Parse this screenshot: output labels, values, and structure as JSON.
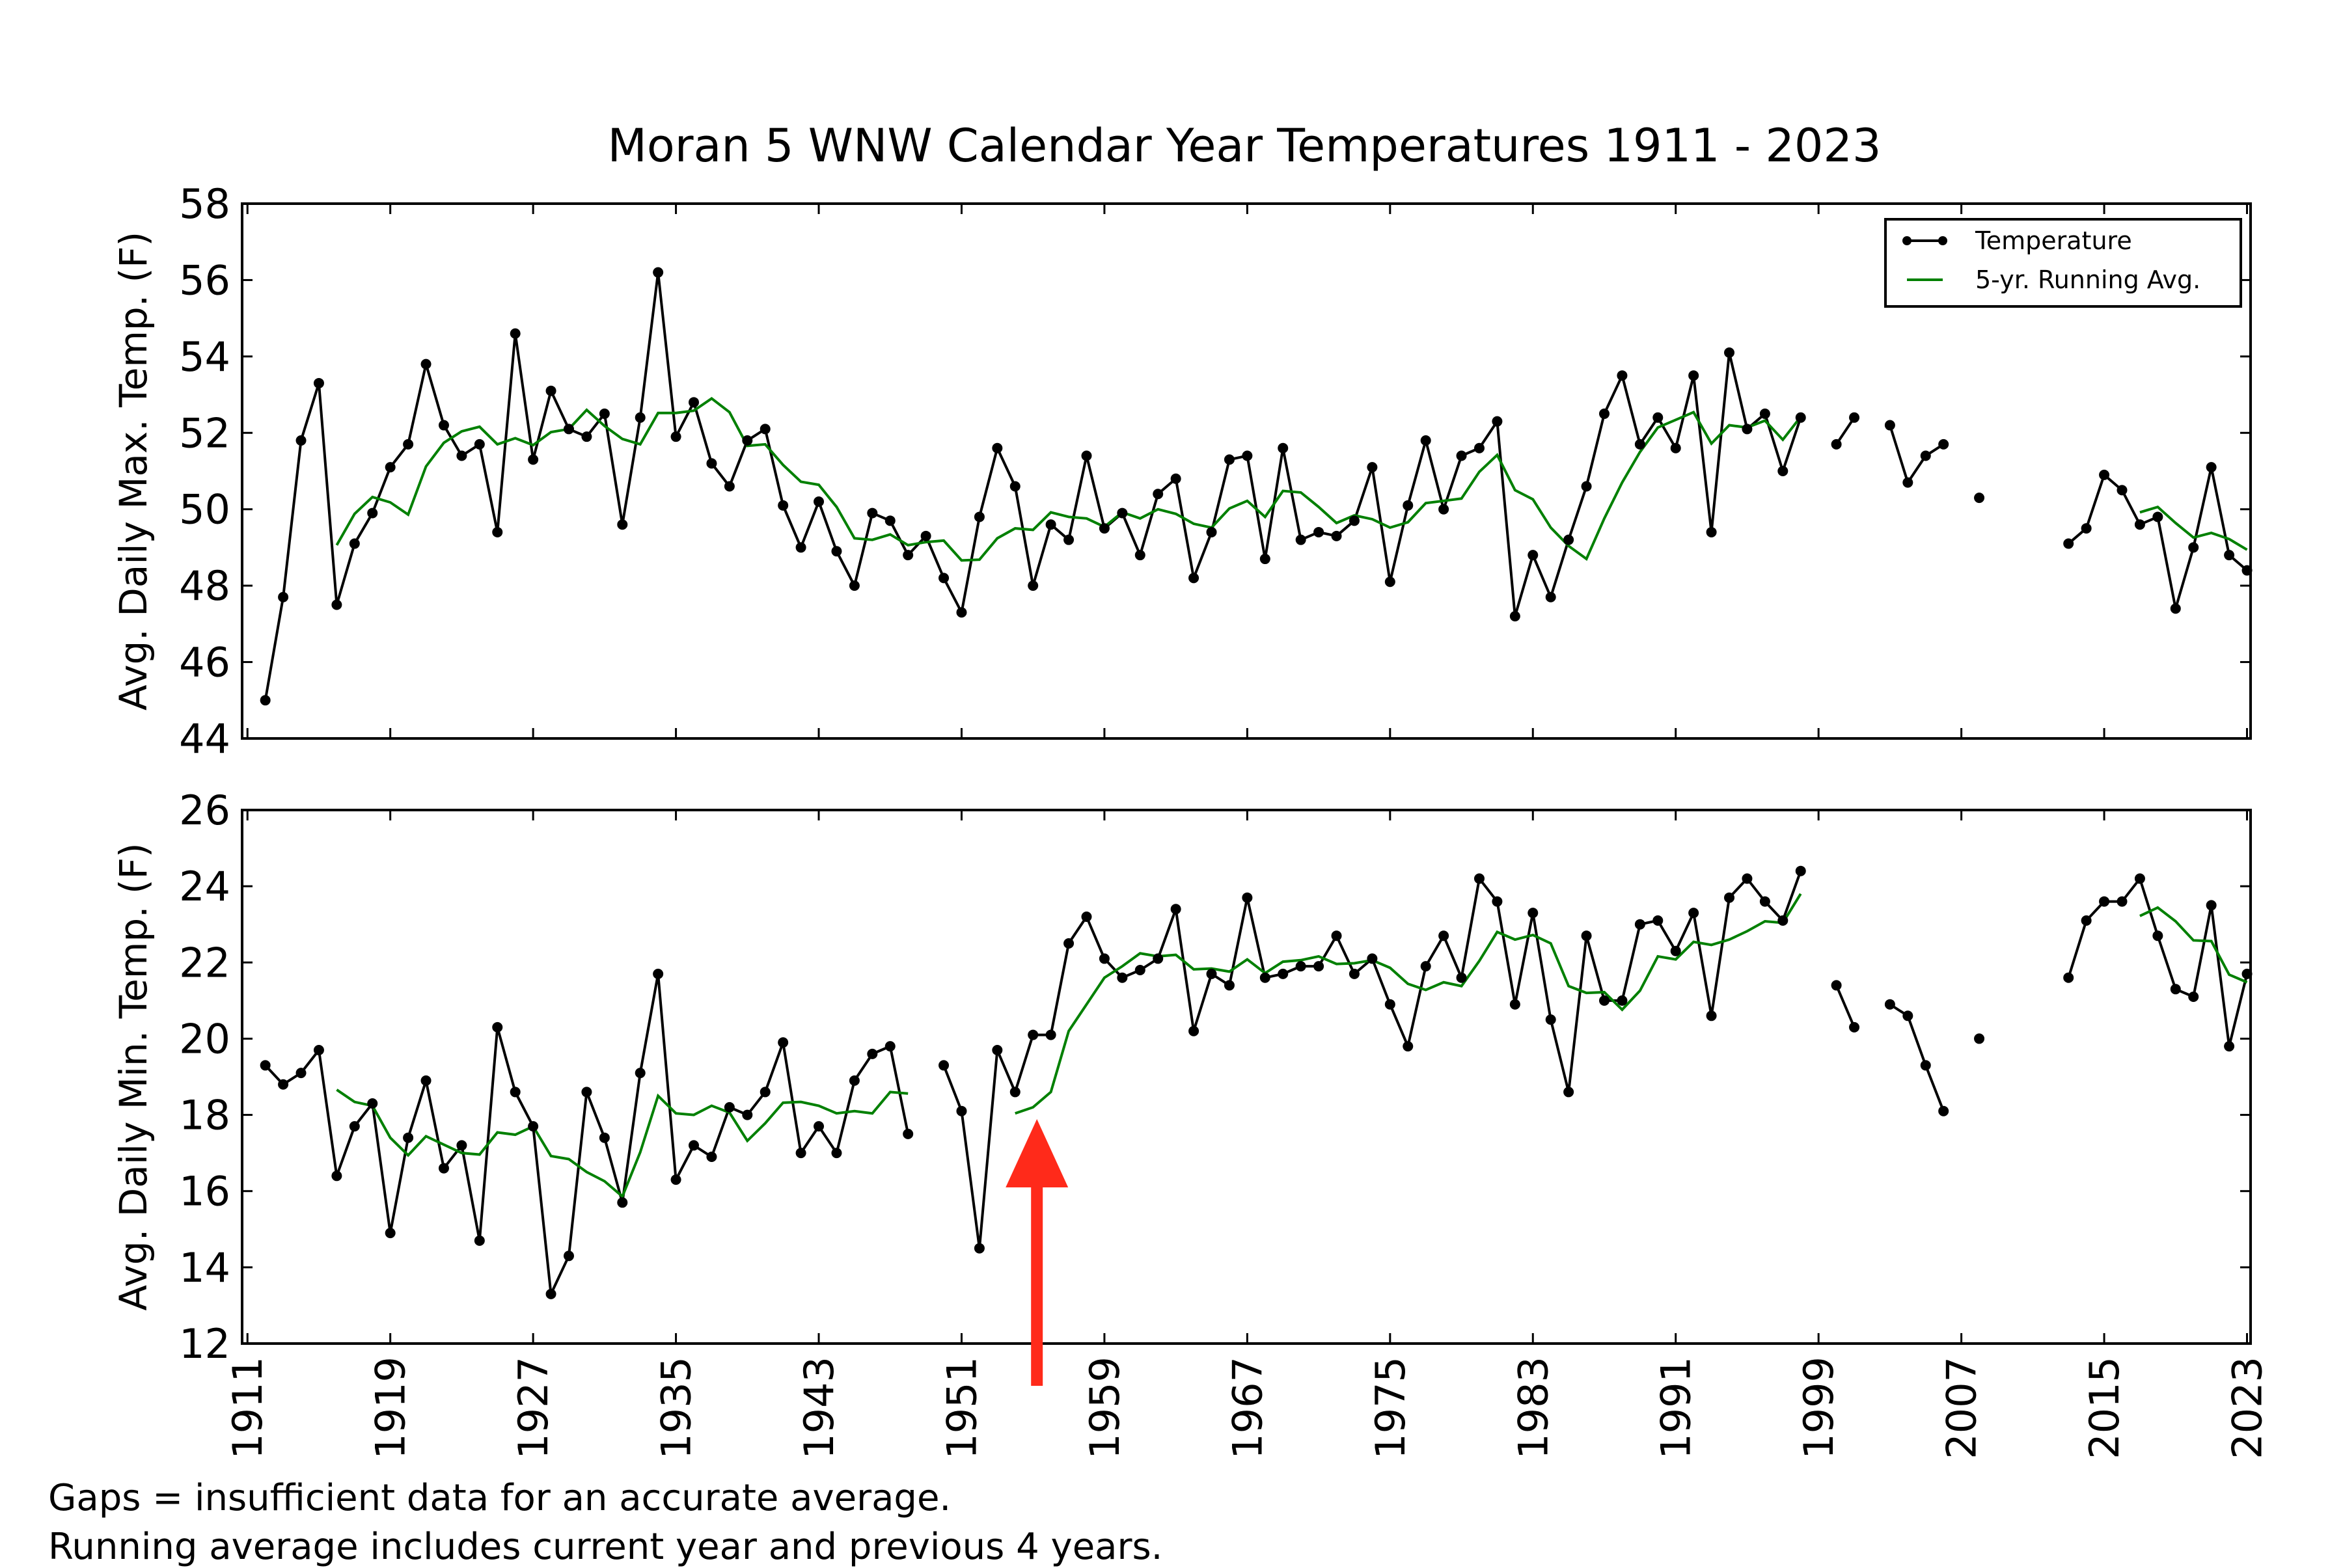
{
  "chart_data": [
    {
      "type": "line",
      "title": "Moran 5 WNW Calendar Year Temperatures 1911 - 2023",
      "ylabel": "Avg. Daily Max. Temp. (F)",
      "xlabel": "",
      "ylim": [
        44,
        58
      ],
      "xlim": [
        1911,
        2023
      ],
      "yticks": [
        44,
        46,
        48,
        50,
        52,
        54,
        56,
        58
      ],
      "legend": {
        "placement": "top-right",
        "entries": [
          "Temperature",
          "5-yr. Running Avg."
        ]
      },
      "series": [
        {
          "name": "Temperature",
          "color": "#000000",
          "points": [
            [
              1912,
              45.0
            ],
            [
              1913,
              47.7
            ],
            [
              1914,
              51.8
            ],
            [
              1915,
              53.3
            ],
            [
              1916,
              47.5
            ],
            [
              1917,
              49.1
            ],
            [
              1918,
              49.9
            ],
            [
              1919,
              51.1
            ],
            [
              1920,
              51.7
            ],
            [
              1921,
              53.8
            ],
            [
              1922,
              52.2
            ],
            [
              1923,
              51.4
            ],
            [
              1924,
              51.7
            ],
            [
              1925,
              49.4
            ],
            [
              1926,
              54.6
            ],
            [
              1927,
              51.3
            ],
            [
              1928,
              53.1
            ],
            [
              1929,
              52.1
            ],
            [
              1930,
              51.9
            ],
            [
              1931,
              52.5
            ],
            [
              1932,
              49.6
            ],
            [
              1933,
              52.4
            ],
            [
              1934,
              56.2
            ],
            [
              1935,
              51.9
            ],
            [
              1936,
              52.8
            ],
            [
              1937,
              51.2
            ],
            [
              1938,
              50.6
            ],
            [
              1939,
              51.8
            ],
            [
              1940,
              52.1
            ],
            [
              1941,
              50.1
            ],
            [
              1942,
              49.0
            ],
            [
              1943,
              50.2
            ],
            [
              1944,
              48.9
            ],
            [
              1945,
              48.0
            ],
            [
              1946,
              49.9
            ],
            [
              1947,
              49.7
            ],
            [
              1948,
              48.8
            ],
            [
              1949,
              49.3
            ],
            [
              1950,
              48.2
            ],
            [
              1951,
              47.3
            ],
            [
              1952,
              49.8
            ],
            [
              1953,
              51.6
            ],
            [
              1954,
              50.6
            ],
            [
              1955,
              48.0
            ],
            [
              1956,
              49.6
            ],
            [
              1957,
              49.2
            ],
            [
              1958,
              51.4
            ],
            [
              1959,
              49.5
            ],
            [
              1960,
              49.9
            ],
            [
              1961,
              48.8
            ],
            [
              1962,
              50.4
            ],
            [
              1963,
              50.8
            ],
            [
              1964,
              48.2
            ],
            [
              1965,
              49.4
            ],
            [
              1966,
              51.3
            ],
            [
              1967,
              51.4
            ],
            [
              1968,
              48.7
            ],
            [
              1969,
              51.6
            ],
            [
              1970,
              49.2
            ],
            [
              1971,
              49.4
            ],
            [
              1972,
              49.3
            ],
            [
              1973,
              49.7
            ],
            [
              1974,
              51.1
            ],
            [
              1975,
              48.1
            ],
            [
              1976,
              50.1
            ],
            [
              1977,
              51.8
            ],
            [
              1978,
              50.0
            ],
            [
              1979,
              51.4
            ],
            [
              1980,
              51.6
            ],
            [
              1981,
              52.3
            ],
            [
              1982,
              47.2
            ],
            [
              1983,
              48.8
            ],
            [
              1984,
              47.7
            ],
            [
              1985,
              49.2
            ],
            [
              1986,
              50.6
            ],
            [
              1987,
              52.5
            ],
            [
              1988,
              53.5
            ],
            [
              1989,
              51.7
            ],
            [
              1990,
              52.4
            ],
            [
              1991,
              51.6
            ],
            [
              1992,
              53.5
            ],
            [
              1993,
              49.4
            ],
            [
              1994,
              54.1
            ],
            [
              1995,
              52.1
            ],
            [
              1996,
              52.5
            ],
            [
              1997,
              51.0
            ],
            [
              1998,
              52.4
            ],
            [
              1999,
              null
            ],
            [
              2000,
              51.7
            ],
            [
              2001,
              52.4
            ],
            [
              2002,
              null
            ],
            [
              2003,
              52.2
            ],
            [
              2004,
              50.7
            ],
            [
              2005,
              51.4
            ],
            [
              2006,
              51.7
            ],
            [
              2007,
              null
            ],
            [
              2008,
              50.3
            ],
            [
              2009,
              null
            ],
            [
              2012,
              null
            ],
            [
              2013,
              49.1
            ],
            [
              2014,
              49.5
            ],
            [
              2015,
              50.9
            ],
            [
              2016,
              50.5
            ],
            [
              2017,
              49.6
            ],
            [
              2018,
              49.8
            ],
            [
              2019,
              47.4
            ],
            [
              2020,
              49.0
            ],
            [
              2021,
              51.1
            ],
            [
              2022,
              48.8
            ],
            [
              2023,
              48.4
            ]
          ]
        },
        {
          "name": "5-yr. Running Avg.",
          "color": "#008000",
          "window": 5
        }
      ]
    },
    {
      "type": "line",
      "ylabel": "Avg. Daily Min. Temp. (F)",
      "xlabel": "",
      "ylim": [
        12,
        26
      ],
      "xlim": [
        1911,
        2023
      ],
      "yticks": [
        12,
        14,
        16,
        18,
        20,
        22,
        24,
        26
      ],
      "xticks": [
        "1911",
        "1919",
        "1927",
        "1935",
        "1943",
        "1951",
        "1959",
        "1967",
        "1975",
        "1983",
        "1991",
        "1999",
        "2007",
        "2015",
        "2023"
      ],
      "series": [
        {
          "name": "Temperature",
          "color": "#000000",
          "points": [
            [
              1912,
              19.3
            ],
            [
              1913,
              18.8
            ],
            [
              1914,
              19.1
            ],
            [
              1915,
              19.7
            ],
            [
              1916,
              16.4
            ],
            [
              1917,
              17.7
            ],
            [
              1918,
              18.3
            ],
            [
              1919,
              14.9
            ],
            [
              1920,
              17.4
            ],
            [
              1921,
              18.9
            ],
            [
              1922,
              16.6
            ],
            [
              1923,
              17.2
            ],
            [
              1924,
              14.7
            ],
            [
              1925,
              20.3
            ],
            [
              1926,
              18.6
            ],
            [
              1927,
              17.7
            ],
            [
              1928,
              13.3
            ],
            [
              1929,
              14.3
            ],
            [
              1930,
              18.6
            ],
            [
              1931,
              17.4
            ],
            [
              1932,
              15.7
            ],
            [
              1933,
              19.1
            ],
            [
              1934,
              21.7
            ],
            [
              1935,
              16.3
            ],
            [
              1936,
              17.2
            ],
            [
              1937,
              16.9
            ],
            [
              1938,
              18.2
            ],
            [
              1939,
              18.0
            ],
            [
              1940,
              18.6
            ],
            [
              1941,
              19.9
            ],
            [
              1942,
              17.0
            ],
            [
              1943,
              17.7
            ],
            [
              1944,
              17.0
            ],
            [
              1945,
              18.9
            ],
            [
              1946,
              19.6
            ],
            [
              1947,
              19.8
            ],
            [
              1948,
              17.5
            ],
            [
              1949,
              null
            ],
            [
              1950,
              19.3
            ],
            [
              1951,
              18.1
            ],
            [
              1952,
              14.5
            ],
            [
              1953,
              19.7
            ],
            [
              1954,
              18.6
            ],
            [
              1955,
              20.1
            ],
            [
              1956,
              20.1
            ],
            [
              1957,
              22.5
            ],
            [
              1958,
              23.2
            ],
            [
              1959,
              22.1
            ],
            [
              1960,
              21.6
            ],
            [
              1961,
              21.8
            ],
            [
              1962,
              22.1
            ],
            [
              1963,
              23.4
            ],
            [
              1964,
              20.2
            ],
            [
              1965,
              21.7
            ],
            [
              1966,
              21.4
            ],
            [
              1967,
              23.7
            ],
            [
              1968,
              21.6
            ],
            [
              1969,
              21.7
            ],
            [
              1970,
              21.9
            ],
            [
              1971,
              21.9
            ],
            [
              1972,
              22.7
            ],
            [
              1973,
              21.7
            ],
            [
              1974,
              22.1
            ],
            [
              1975,
              20.9
            ],
            [
              1976,
              19.8
            ],
            [
              1977,
              21.9
            ],
            [
              1978,
              22.7
            ],
            [
              1979,
              21.6
            ],
            [
              1980,
              24.2
            ],
            [
              1981,
              23.6
            ],
            [
              1982,
              20.9
            ],
            [
              1983,
              23.3
            ],
            [
              1984,
              20.5
            ],
            [
              1985,
              18.6
            ],
            [
              1986,
              22.7
            ],
            [
              1987,
              21.0
            ],
            [
              1988,
              21.0
            ],
            [
              1989,
              23.0
            ],
            [
              1990,
              23.1
            ],
            [
              1991,
              22.3
            ],
            [
              1992,
              23.3
            ],
            [
              1993,
              20.6
            ],
            [
              1994,
              23.7
            ],
            [
              1995,
              24.2
            ],
            [
              1996,
              23.6
            ],
            [
              1997,
              23.1
            ],
            [
              1998,
              24.4
            ],
            [
              1999,
              null
            ],
            [
              2000,
              21.4
            ],
            [
              2001,
              20.3
            ],
            [
              2002,
              null
            ],
            [
              2003,
              20.9
            ],
            [
              2004,
              20.6
            ],
            [
              2005,
              19.3
            ],
            [
              2006,
              18.1
            ],
            [
              2007,
              null
            ],
            [
              2008,
              20.0
            ],
            [
              2009,
              null
            ],
            [
              2012,
              null
            ],
            [
              2013,
              21.6
            ],
            [
              2014,
              23.1
            ],
            [
              2015,
              23.6
            ],
            [
              2016,
              23.6
            ],
            [
              2017,
              24.2
            ],
            [
              2018,
              22.7
            ],
            [
              2019,
              21.3
            ],
            [
              2020,
              21.1
            ],
            [
              2021,
              23.5
            ],
            [
              2022,
              19.8
            ],
            [
              2023,
              21.7
            ]
          ]
        },
        {
          "name": "5-yr. Running Avg.",
          "color": "#008000",
          "window": 5
        }
      ],
      "annotations": [
        {
          "type": "arrow",
          "color": "#ff2a1a",
          "points_to_year": 1955,
          "direction": "up"
        }
      ]
    }
  ],
  "notes": [
    "Gaps = insufficient data for an accurate average.",
    "Running average includes current year and previous 4 years."
  ]
}
